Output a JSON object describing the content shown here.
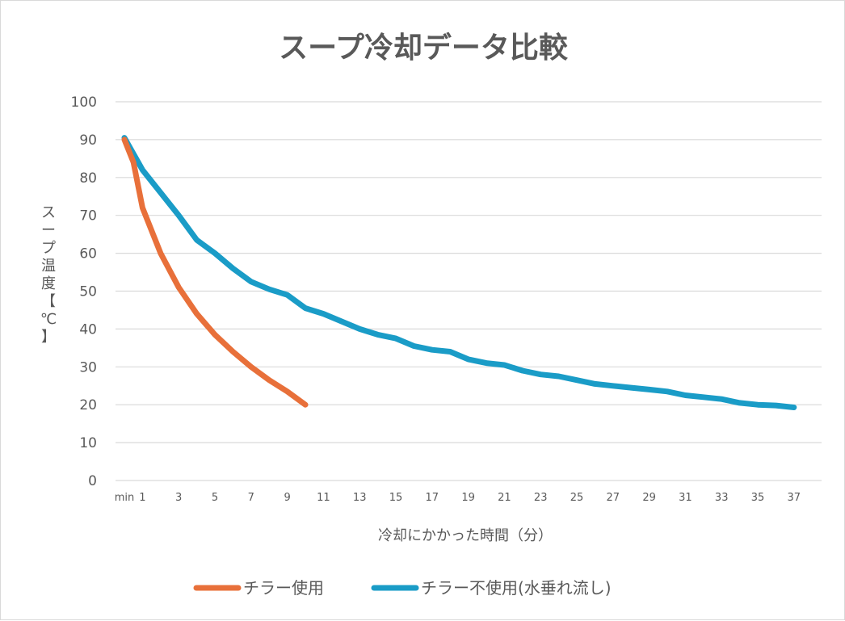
{
  "chart_data": {
    "type": "line",
    "title": "スープ冷却データ比較",
    "xlabel": "冷却にかかった時間（分）",
    "ylabel": "スープ温度【℃】",
    "ylim": [
      0,
      100
    ],
    "yticks": [
      0,
      10,
      20,
      30,
      40,
      50,
      60,
      70,
      80,
      90,
      100
    ],
    "x_first_label": "min",
    "x_tick_labels": [
      "min",
      "1",
      "3",
      "5",
      "7",
      "9",
      "11",
      "13",
      "15",
      "17",
      "19",
      "21",
      "23",
      "25",
      "27",
      "29",
      "31",
      "33",
      "35",
      "37"
    ],
    "grid": true,
    "legend": "bottom",
    "series": [
      {
        "name": "チラー使用",
        "color": "#E8703A",
        "x": [
          0,
          0.5,
          1,
          2,
          3,
          4,
          5,
          6,
          7,
          8,
          9,
          10
        ],
        "values": [
          90,
          84,
          72,
          60,
          51,
          44,
          38.5,
          34,
          30,
          26.5,
          23.5,
          20
        ]
      },
      {
        "name": "チラー不使用(水垂れ流し)",
        "color": "#1A9CC7",
        "x": [
          0,
          1,
          2,
          3,
          4,
          5,
          6,
          7,
          8,
          9,
          10,
          11,
          12,
          13,
          14,
          15,
          16,
          17,
          18,
          19,
          20,
          21,
          22,
          23,
          24,
          25,
          26,
          27,
          28,
          29,
          30,
          31,
          32,
          33,
          34,
          35,
          36,
          37
        ],
        "values": [
          90.5,
          82,
          76,
          70,
          63.5,
          60,
          56,
          52.5,
          50.5,
          49,
          45.5,
          44,
          42,
          40,
          38.5,
          37.5,
          35.5,
          34.5,
          34,
          32,
          31,
          30.5,
          29,
          28,
          27.5,
          26.5,
          25.5,
          25,
          24.5,
          24,
          23.5,
          22.5,
          22,
          21.5,
          20.5,
          20,
          19.8,
          19.3
        ]
      }
    ]
  }
}
